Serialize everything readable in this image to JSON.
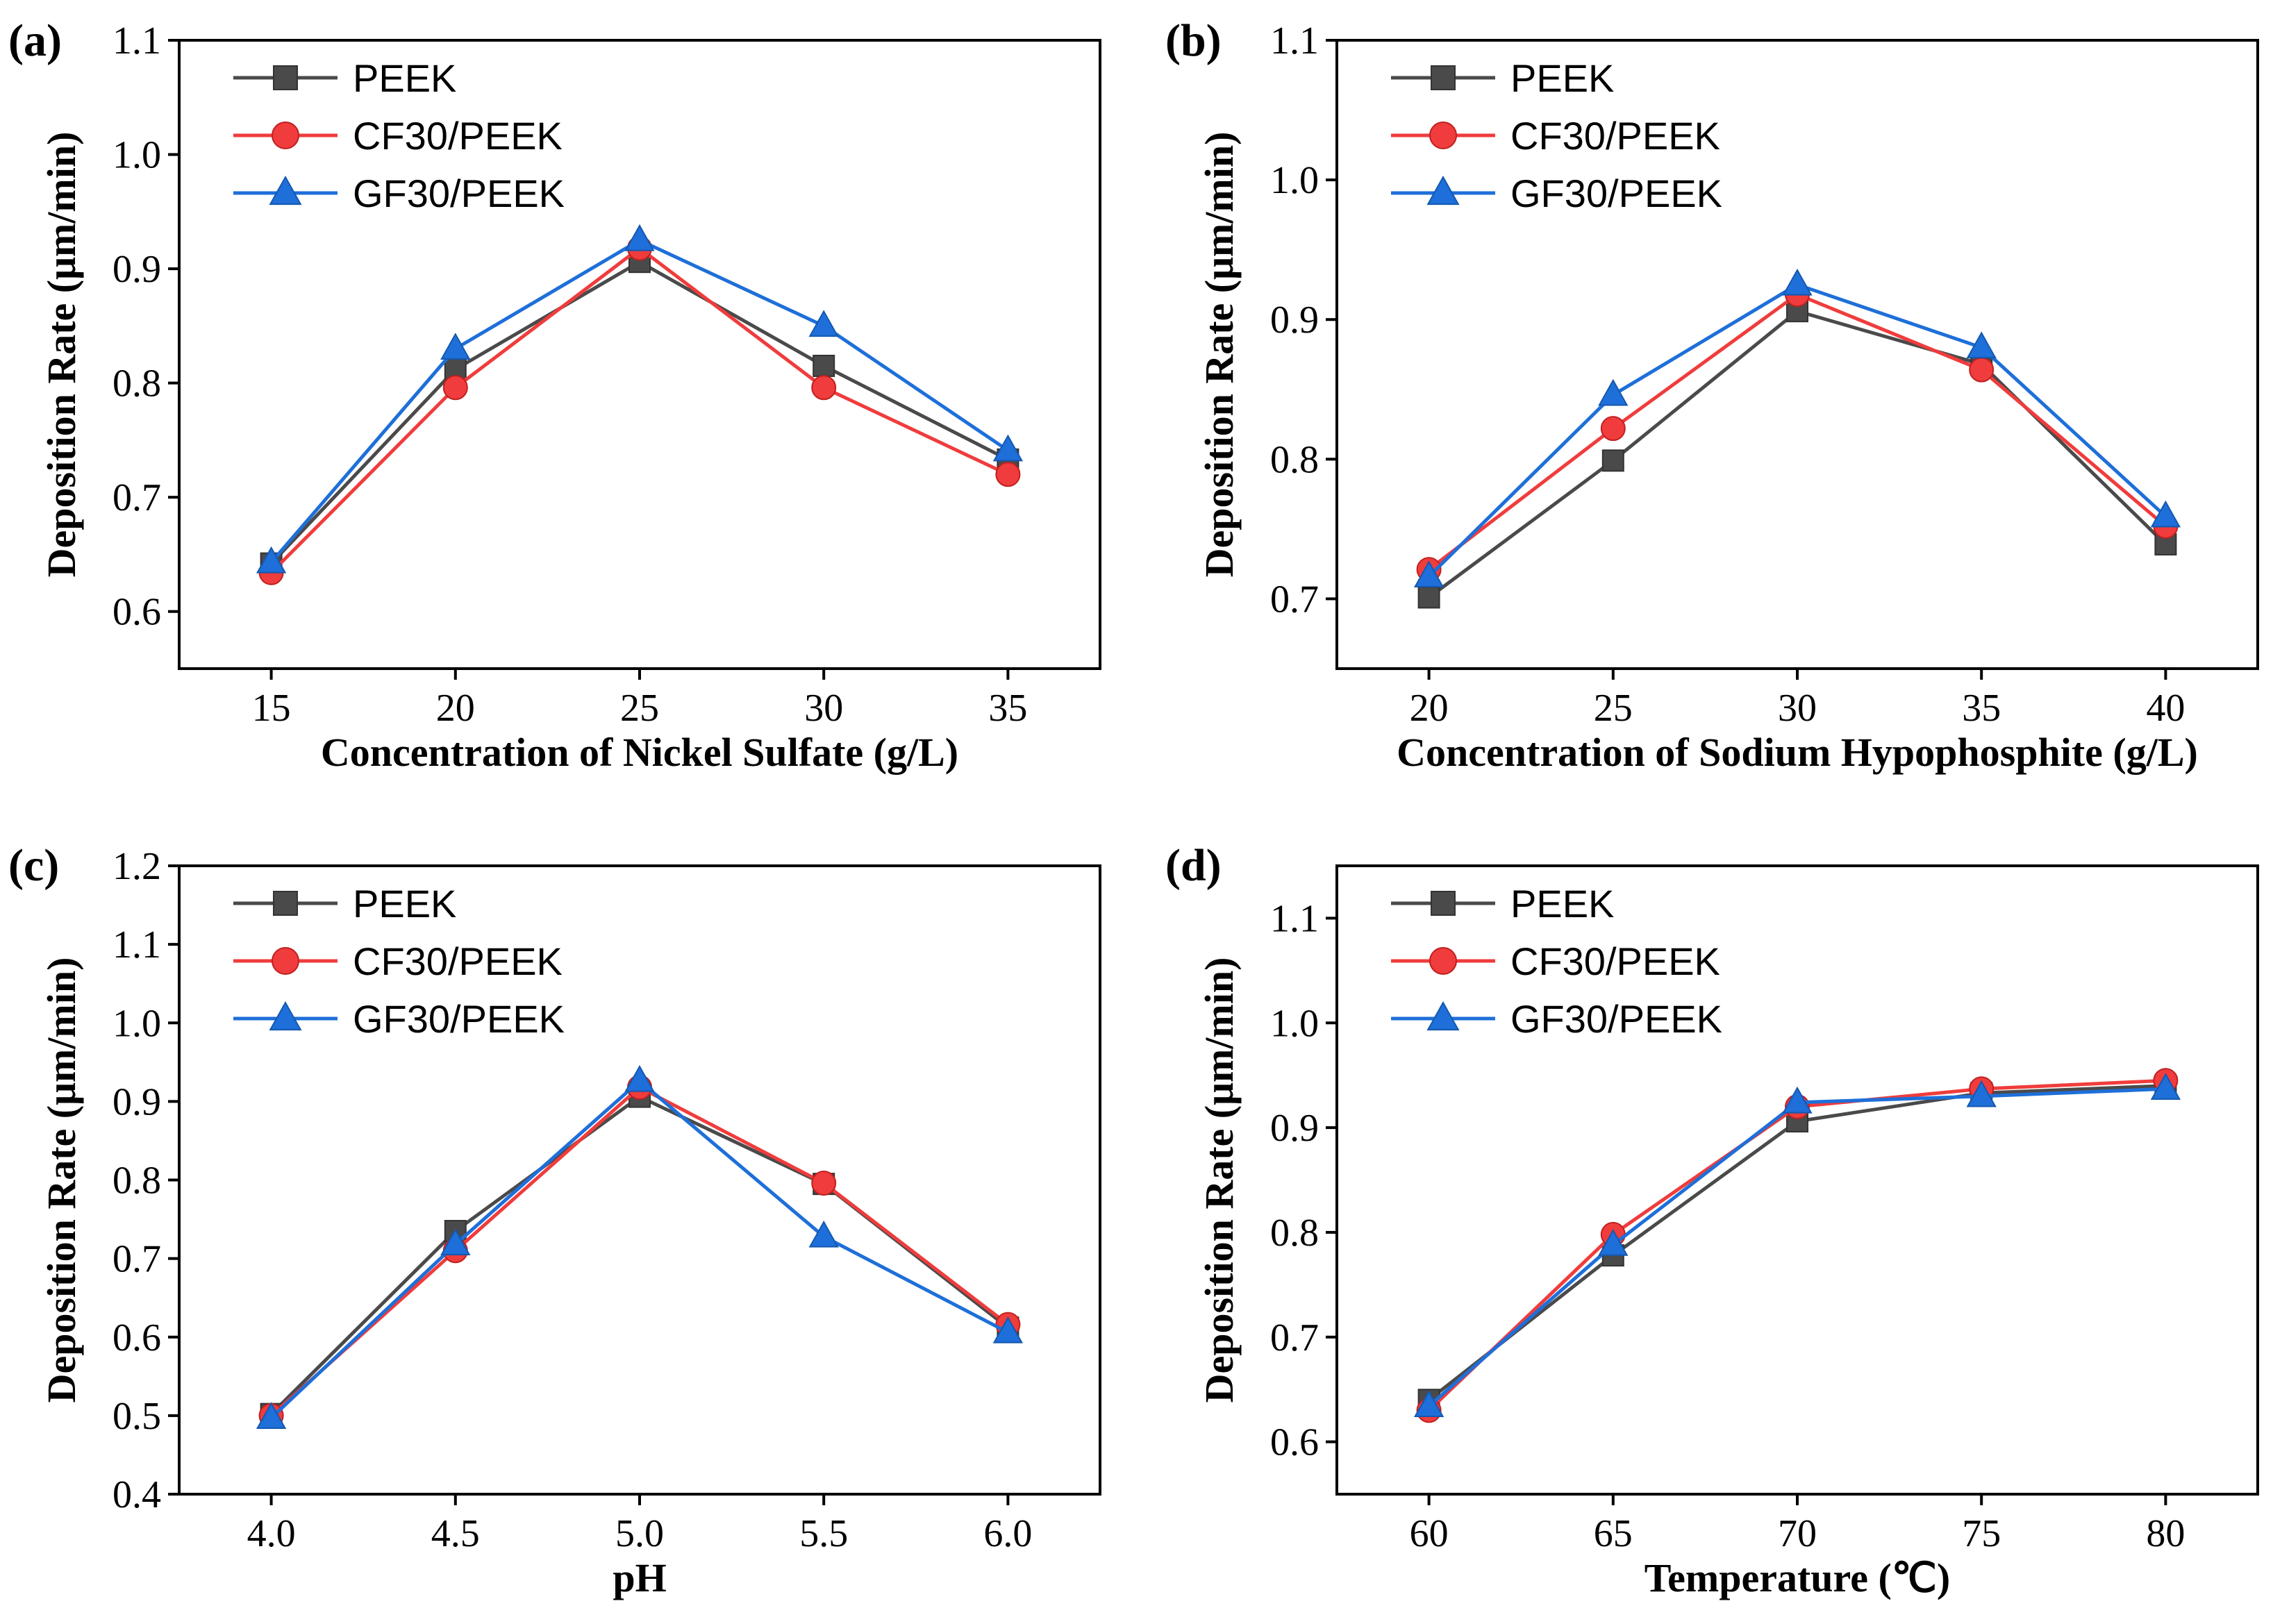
{
  "chart_data": [
    {
      "type": "line",
      "panel": "(a)",
      "xlabel": "Concentration of Nickel Sulfate (g/L)",
      "ylabel": "Deposition Rate (μm/min)",
      "x": [
        15,
        20,
        25,
        30,
        35
      ],
      "xticks": [
        "15",
        "20",
        "25",
        "30",
        "35"
      ],
      "xlim": [
        12.5,
        37.5
      ],
      "ylim": [
        0.55,
        1.1
      ],
      "yticks": [
        0.6,
        0.7,
        0.8,
        0.9,
        1.0,
        1.1
      ],
      "ytick_labels": [
        "0.6",
        "0.7",
        "0.8",
        "0.9",
        "1.0",
        "1.1"
      ],
      "grid": false,
      "legend_position": "top-left",
      "series": [
        {
          "name": "PEEK",
          "color": "#4a4a4a",
          "marker": "square",
          "values": [
            0.642,
            0.812,
            0.906,
            0.815,
            0.733
          ]
        },
        {
          "name": "CF30/PEEK",
          "color": "#f03c3c",
          "marker": "circle",
          "values": [
            0.634,
            0.796,
            0.918,
            0.796,
            0.72
          ]
        },
        {
          "name": "GF30/PEEK",
          "color": "#1e6fd9",
          "marker": "triangle",
          "values": [
            0.643,
            0.83,
            0.925,
            0.85,
            0.741
          ]
        }
      ]
    },
    {
      "type": "line",
      "panel": "(b)",
      "xlabel": "Concentration of Sodium Hypophosphite (g/L)",
      "ylabel": "Deposition Rate (μm/min)",
      "x": [
        20,
        25,
        30,
        35,
        40
      ],
      "xticks": [
        "20",
        "25",
        "30",
        "35",
        "40"
      ],
      "xlim": [
        17.5,
        42.5
      ],
      "ylim": [
        0.65,
        1.1
      ],
      "yticks": [
        0.7,
        0.8,
        0.9,
        1.0,
        1.1
      ],
      "ytick_labels": [
        "0.7",
        "0.8",
        "0.9",
        "1.0",
        "1.1"
      ],
      "grid": false,
      "legend_position": "top-left",
      "series": [
        {
          "name": "PEEK",
          "color": "#4a4a4a",
          "marker": "square",
          "values": [
            0.701,
            0.799,
            0.906,
            0.868,
            0.739
          ]
        },
        {
          "name": "CF30/PEEK",
          "color": "#f03c3c",
          "marker": "circle",
          "values": [
            0.721,
            0.822,
            0.918,
            0.864,
            0.752
          ]
        },
        {
          "name": "GF30/PEEK",
          "color": "#1e6fd9",
          "marker": "triangle",
          "values": [
            0.716,
            0.846,
            0.925,
            0.88,
            0.759
          ]
        }
      ]
    },
    {
      "type": "line",
      "panel": "(c)",
      "xlabel": "pH",
      "ylabel": "Deposition Rate (μm/min)",
      "x": [
        4.0,
        4.5,
        5.0,
        5.5,
        6.0
      ],
      "xticks": [
        "4.0",
        "4.5",
        "5.0",
        "5.5",
        "6.0"
      ],
      "xlim": [
        3.75,
        6.25
      ],
      "ylim": [
        0.4,
        1.2
      ],
      "yticks": [
        0.4,
        0.5,
        0.6,
        0.7,
        0.8,
        0.9,
        1.0,
        1.1,
        1.2
      ],
      "ytick_labels": [
        "0.4",
        "0.5",
        "0.6",
        "0.7",
        "0.8",
        "0.9",
        "1.0",
        "1.1",
        "1.2"
      ],
      "grid": false,
      "legend_position": "top-left",
      "series": [
        {
          "name": "PEEK",
          "color": "#4a4a4a",
          "marker": "square",
          "values": [
            0.502,
            0.735,
            0.906,
            0.795,
            0.612
          ]
        },
        {
          "name": "CF30/PEEK",
          "color": "#f03c3c",
          "marker": "circle",
          "values": [
            0.5,
            0.71,
            0.918,
            0.796,
            0.616
          ]
        },
        {
          "name": "GF30/PEEK",
          "color": "#1e6fd9",
          "marker": "triangle",
          "values": [
            0.497,
            0.718,
            0.926,
            0.728,
            0.606
          ]
        }
      ]
    },
    {
      "type": "line",
      "panel": "(d)",
      "xlabel": "Temperature (℃)",
      "ylabel": "Deposition Rate (μm/min)",
      "x": [
        60,
        65,
        70,
        75,
        80
      ],
      "xticks": [
        "60",
        "65",
        "70",
        "75",
        "80"
      ],
      "xlim": [
        57.5,
        82.5
      ],
      "ylim": [
        0.55,
        1.15
      ],
      "yticks": [
        0.6,
        0.7,
        0.8,
        0.9,
        1.0,
        1.1
      ],
      "ytick_labels": [
        "0.6",
        "0.7",
        "0.8",
        "0.9",
        "1.0",
        "1.1"
      ],
      "grid": false,
      "legend_position": "top-left",
      "series": [
        {
          "name": "PEEK",
          "color": "#4a4a4a",
          "marker": "square",
          "values": [
            0.64,
            0.778,
            0.906,
            0.933,
            0.94
          ]
        },
        {
          "name": "CF30/PEEK",
          "color": "#f03c3c",
          "marker": "circle",
          "values": [
            0.63,
            0.798,
            0.92,
            0.937,
            0.945
          ]
        },
        {
          "name": "GF30/PEEK",
          "color": "#1e6fd9",
          "marker": "triangle",
          "values": [
            0.634,
            0.788,
            0.924,
            0.93,
            0.937
          ]
        }
      ]
    }
  ]
}
